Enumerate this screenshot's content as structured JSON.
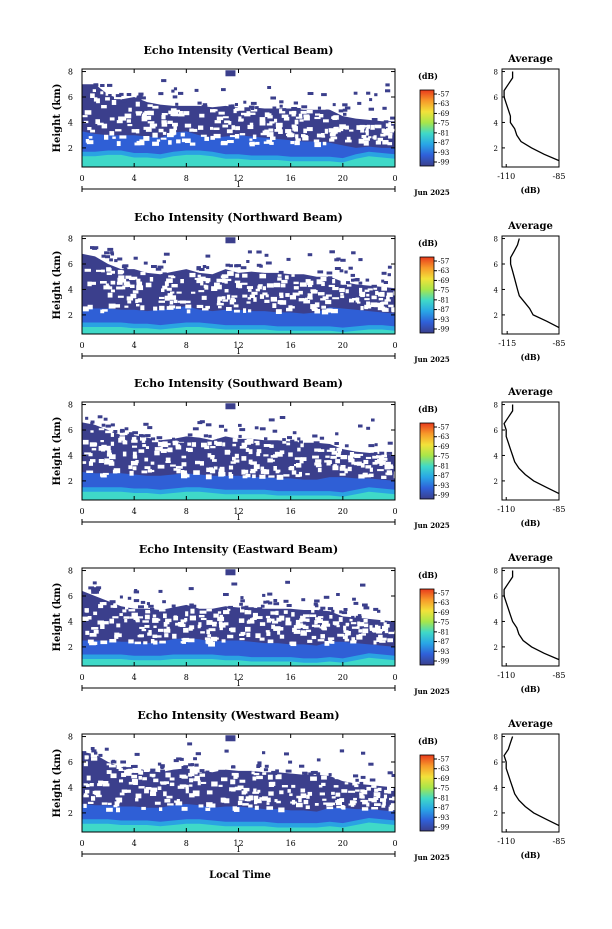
{
  "common": {
    "ylabel": "Height (km)",
    "xlabel": "Local Time",
    "date_label": "Jun 2025",
    "colorbar_unit": "(dB)",
    "colorbar_ticks": [
      "-57",
      "-63",
      "-69",
      "-75",
      "-81",
      "-87",
      "-93",
      "-99"
    ],
    "colorbar_colors": [
      "#e83a1c",
      "#f79a2a",
      "#f2e23a",
      "#a8e64a",
      "#3fd9c8",
      "#29a6e6",
      "#2f60d9",
      "#3b3f8c"
    ],
    "x_ticks": [
      "0",
      "4",
      "8",
      "12",
      "16",
      "20",
      "0"
    ],
    "y_ticks": [
      "2",
      "4",
      "6",
      "8"
    ],
    "day_label": "1",
    "avg_title": "Average",
    "avg_xlabel": "(dB)",
    "avg_y_ticks": [
      "2",
      "4",
      "6",
      "8"
    ]
  },
  "chart_data": [
    {
      "type": "heatmap",
      "title": "Echo Intensity (Vertical Beam)",
      "x_range": [
        0,
        24
      ],
      "y_range": [
        0.5,
        8.2
      ],
      "c_range": [
        -99,
        -57
      ],
      "layers": [
        {
          "name": "dark",
          "upper": [
            7.0,
            7.0,
            6.2,
            5.8,
            6.0,
            5.6,
            5.4,
            5.3,
            5.3,
            5.3,
            5.2,
            5.3,
            5.2,
            5.2,
            5.1,
            5.1,
            5.1,
            5.0,
            5.0,
            5.0,
            4.5,
            4.3,
            4.2,
            4.1,
            4.1
          ]
        },
        {
          "name": "mid",
          "upper": [
            3.3,
            3.1,
            3.0,
            3.0,
            3.0,
            2.9,
            2.8,
            3.2,
            3.3,
            3.0,
            2.8,
            2.9,
            3.0,
            2.9,
            2.8,
            2.7,
            2.6,
            2.5,
            2.5,
            2.4,
            2.2,
            2.0,
            2.1,
            2.0,
            2.0
          ]
        },
        {
          "name": "low",
          "upper": [
            1.7,
            1.7,
            1.8,
            1.8,
            1.6,
            1.6,
            1.5,
            1.7,
            1.8,
            1.8,
            1.7,
            1.5,
            1.5,
            1.4,
            1.4,
            1.4,
            1.3,
            1.3,
            1.3,
            1.3,
            1.2,
            1.5,
            1.7,
            1.6,
            1.5
          ]
        }
      ],
      "average": {
        "x_range": [
          -112,
          -85
        ],
        "x_ticks": [
          "-110",
          "-85"
        ],
        "height": [
          1.0,
          1.5,
          2.0,
          2.5,
          3.0,
          3.5,
          4.0,
          4.5,
          5.0,
          5.5,
          6.0,
          6.5,
          7.0,
          7.5,
          8.0
        ],
        "value": [
          -85,
          -92,
          -98,
          -103,
          -105,
          -106,
          -108,
          -108,
          -109,
          -110,
          -111,
          -111,
          -109,
          -107,
          -107
        ]
      }
    },
    {
      "type": "heatmap",
      "title": "Echo Intensity (Northward Beam)",
      "x_range": [
        0,
        24
      ],
      "y_range": [
        0.5,
        8.2
      ],
      "c_range": [
        -99,
        -57
      ],
      "layers": [
        {
          "name": "dark",
          "upper": [
            6.8,
            6.6,
            6.0,
            5.6,
            5.6,
            5.3,
            5.2,
            5.4,
            5.6,
            5.3,
            5.2,
            5.6,
            5.3,
            5.4,
            5.3,
            5.3,
            5.2,
            5.2,
            5.0,
            5.0,
            4.6,
            4.4,
            4.3,
            4.2,
            4.1
          ]
        },
        {
          "name": "mid",
          "upper": [
            2.6,
            2.5,
            2.5,
            2.4,
            2.4,
            2.3,
            2.4,
            2.5,
            2.7,
            2.4,
            2.3,
            2.4,
            2.4,
            2.3,
            2.3,
            2.2,
            2.2,
            2.1,
            2.2,
            2.6,
            2.5,
            2.4,
            2.3,
            2.2,
            2.1
          ]
        },
        {
          "name": "low",
          "upper": [
            1.4,
            1.4,
            1.4,
            1.4,
            1.3,
            1.3,
            1.2,
            1.3,
            1.4,
            1.4,
            1.3,
            1.2,
            1.2,
            1.2,
            1.2,
            1.1,
            1.1,
            1.1,
            1.1,
            1.1,
            1.0,
            1.1,
            1.2,
            1.2,
            1.1
          ]
        }
      ],
      "average": {
        "x_range": [
          -118,
          -85
        ],
        "x_ticks": [
          "-115",
          "-85"
        ],
        "height": [
          1.0,
          1.5,
          2.0,
          2.5,
          3.0,
          3.5,
          4.0,
          4.5,
          5.0,
          5.5,
          6.0,
          6.5,
          7.0,
          7.5,
          8.0
        ],
        "value": [
          -85,
          -92,
          -100,
          -102,
          -105,
          -108,
          -109,
          -110,
          -111,
          -112,
          -113,
          -113,
          -111,
          -109,
          -108
        ]
      }
    },
    {
      "type": "heatmap",
      "title": "Echo Intensity (Southward Beam)",
      "x_range": [
        0,
        24
      ],
      "y_range": [
        0.5,
        8.2
      ],
      "c_range": [
        -99,
        -57
      ],
      "layers": [
        {
          "name": "dark",
          "upper": [
            6.6,
            6.4,
            6.0,
            5.6,
            5.6,
            5.4,
            5.2,
            5.3,
            5.5,
            5.4,
            5.2,
            5.5,
            5.3,
            5.3,
            5.2,
            5.2,
            5.1,
            5.0,
            5.0,
            4.9,
            4.5,
            4.3,
            4.2,
            4.1,
            4.0
          ]
        },
        {
          "name": "mid",
          "upper": [
            2.7,
            2.6,
            2.6,
            2.6,
            2.5,
            2.4,
            2.4,
            2.5,
            2.6,
            2.5,
            2.4,
            2.4,
            2.4,
            2.3,
            2.3,
            2.2,
            2.2,
            2.1,
            2.1,
            2.3,
            2.3,
            2.2,
            2.2,
            2.1,
            2.0
          ]
        },
        {
          "name": "low",
          "upper": [
            1.5,
            1.5,
            1.5,
            1.5,
            1.4,
            1.4,
            1.3,
            1.4,
            1.5,
            1.5,
            1.4,
            1.3,
            1.3,
            1.3,
            1.3,
            1.2,
            1.2,
            1.2,
            1.2,
            1.2,
            1.1,
            1.3,
            1.5,
            1.4,
            1.3
          ]
        }
      ],
      "average": {
        "x_range": [
          -112,
          -85
        ],
        "x_ticks": [
          "-110",
          "-85"
        ],
        "height": [
          1.0,
          1.5,
          2.0,
          2.5,
          3.0,
          3.5,
          4.0,
          4.5,
          5.0,
          5.5,
          6.0,
          6.5,
          7.0,
          7.5,
          8.0
        ],
        "value": [
          -85,
          -91,
          -97,
          -101,
          -104,
          -106,
          -107,
          -108,
          -109,
          -110,
          -110,
          -111,
          -109,
          -107,
          -107
        ]
      }
    },
    {
      "type": "heatmap",
      "title": "Echo Intensity (Eastward Beam)",
      "x_range": [
        0,
        24
      ],
      "y_range": [
        0.5,
        8.2
      ],
      "c_range": [
        -99,
        -57
      ],
      "layers": [
        {
          "name": "dark",
          "upper": [
            6.4,
            6.0,
            5.6,
            5.2,
            5.0,
            5.0,
            4.9,
            5.1,
            5.3,
            5.0,
            5.0,
            5.2,
            5.1,
            5.1,
            5.0,
            5.0,
            5.0,
            4.9,
            4.9,
            4.8,
            4.4,
            4.3,
            4.2,
            4.1,
            4.0
          ]
        },
        {
          "name": "mid",
          "upper": [
            2.5,
            2.5,
            2.5,
            2.4,
            2.4,
            2.3,
            2.4,
            2.6,
            2.7,
            2.6,
            2.4,
            2.5,
            2.5,
            2.4,
            2.3,
            2.3,
            2.2,
            2.2,
            2.1,
            2.4,
            2.4,
            2.3,
            2.2,
            2.1,
            2.0
          ]
        },
        {
          "name": "low",
          "upper": [
            1.4,
            1.4,
            1.4,
            1.4,
            1.3,
            1.3,
            1.3,
            1.4,
            1.4,
            1.4,
            1.4,
            1.3,
            1.3,
            1.2,
            1.2,
            1.2,
            1.2,
            1.1,
            1.1,
            1.2,
            1.1,
            1.3,
            1.5,
            1.4,
            1.3
          ]
        }
      ],
      "average": {
        "x_range": [
          -112,
          -85
        ],
        "x_ticks": [
          "-110",
          "-85"
        ],
        "height": [
          1.0,
          1.5,
          2.0,
          2.5,
          3.0,
          3.5,
          4.0,
          4.5,
          5.0,
          5.5,
          6.0,
          6.5,
          7.0,
          7.5,
          8.0
        ],
        "value": [
          -85,
          -92,
          -98,
          -102,
          -104,
          -105,
          -107,
          -108,
          -109,
          -110,
          -111,
          -111,
          -109,
          -107,
          -107
        ]
      }
    },
    {
      "type": "heatmap",
      "title": "Echo Intensity (Westward Beam)",
      "x_range": [
        0,
        24
      ],
      "y_range": [
        0.5,
        8.2
      ],
      "c_range": [
        -99,
        -57
      ],
      "layers": [
        {
          "name": "dark",
          "upper": [
            6.8,
            6.6,
            6.0,
            5.6,
            5.6,
            5.3,
            5.2,
            5.4,
            5.5,
            5.3,
            5.2,
            5.4,
            5.3,
            5.3,
            5.2,
            5.2,
            5.1,
            5.0,
            5.0,
            4.9,
            4.5,
            4.3,
            4.2,
            4.1,
            4.0
          ]
        },
        {
          "name": "mid",
          "upper": [
            2.7,
            2.6,
            2.6,
            2.5,
            2.5,
            2.4,
            2.4,
            2.6,
            2.7,
            2.6,
            2.4,
            2.5,
            2.5,
            2.4,
            2.3,
            2.3,
            2.2,
            2.2,
            2.1,
            2.4,
            2.4,
            2.3,
            2.3,
            2.2,
            2.1
          ]
        },
        {
          "name": "low",
          "upper": [
            1.5,
            1.5,
            1.5,
            1.4,
            1.4,
            1.4,
            1.3,
            1.4,
            1.5,
            1.5,
            1.4,
            1.3,
            1.3,
            1.3,
            1.3,
            1.2,
            1.2,
            1.2,
            1.2,
            1.3,
            1.2,
            1.4,
            1.6,
            1.5,
            1.4
          ]
        }
      ],
      "average": {
        "x_range": [
          -112,
          -85
        ],
        "x_ticks": [
          "-110",
          "-85"
        ],
        "height": [
          1.0,
          1.5,
          2.0,
          2.5,
          3.0,
          3.5,
          4.0,
          4.5,
          5.0,
          5.5,
          6.0,
          6.5,
          7.0,
          7.5,
          8.0
        ],
        "value": [
          -85,
          -91,
          -97,
          -101,
          -104,
          -106,
          -107,
          -108,
          -109,
          -110,
          -110,
          -111,
          -109,
          -108,
          -107
        ]
      }
    }
  ]
}
